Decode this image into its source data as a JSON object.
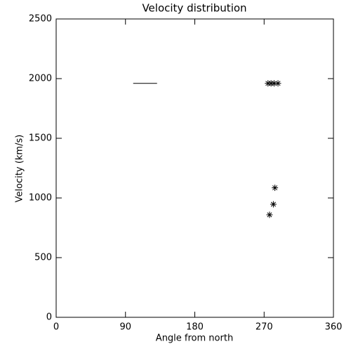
{
  "chart_data": {
    "type": "scatter",
    "title": "Velocity distribution",
    "x_label": "Angle from north",
    "y_label": "Velocity (km/s)",
    "xlim": [
      0,
      360
    ],
    "xticks": [
      0,
      90,
      180,
      270,
      360
    ],
    "ylim": [
      0,
      2500
    ],
    "yticks": [
      0,
      500,
      1000,
      1500,
      2000,
      2500
    ],
    "color": "#000000",
    "marker": "asterisk",
    "x": [
      275,
      279,
      283,
      288,
      284,
      282,
      277
    ],
    "values": [
      1960,
      1960,
      1960,
      1960,
      1085,
      947,
      859
    ],
    "lines": [
      {
        "x": [
          100,
          131
        ],
        "values": [
          1960,
          1960
        ]
      }
    ]
  }
}
